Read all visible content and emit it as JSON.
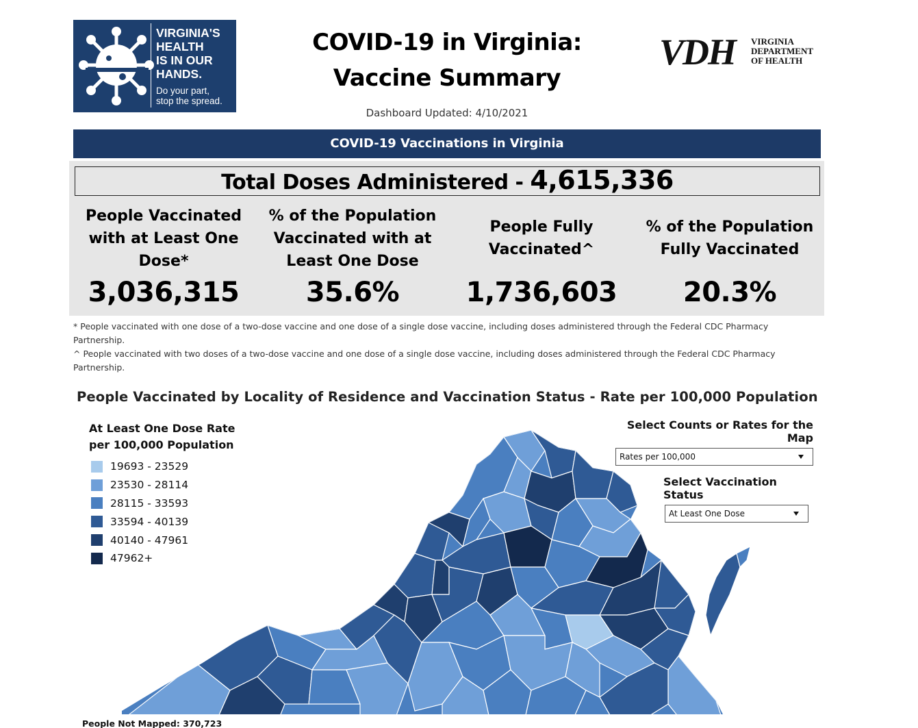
{
  "header": {
    "logo_left": {
      "slogan_lines": [
        "VIRGINIA'S",
        "HEALTH",
        "IS IN OUR",
        "HANDS."
      ],
      "sub_lines": [
        "Do your part,",
        "stop the spread."
      ]
    },
    "title_line1": "COVID-19 in Virginia:",
    "title_line2": "Vaccine Summary",
    "updated": "Dashboard Updated: 4/10/2021",
    "logo_right": {
      "mark": "VDH",
      "text_lines": [
        "VIRGINIA",
        "DEPARTMENT",
        "OF HEALTH"
      ]
    }
  },
  "banner": "COVID-19 Vaccinations in Virginia",
  "summary": {
    "total_label": "Total Doses Administered - ",
    "total_value": "4,615,336",
    "stats": [
      {
        "label": "People Vaccinated with at Least One Dose*",
        "value": "3,036,315"
      },
      {
        "label": "% of the Population Vaccinated with at Least One Dose",
        "value": "35.6%"
      },
      {
        "label": "People Fully Vaccinated^",
        "value": "1,736,603"
      },
      {
        "label": "% of the Population Fully Vaccinated",
        "value": "20.3%"
      }
    ]
  },
  "notes": [
    "* People vaccinated with one dose of a two-dose vaccine and one dose of a single dose vaccine, including doses administered through the Federal CDC Pharmacy Partnership.",
    "^ People vaccinated with two doses of a two-dose vaccine and one dose of a single dose vaccine, including doses administered through the Federal CDC Pharmacy Partnership."
  ],
  "map_section": {
    "title": "People Vaccinated by Locality of Residence and Vaccination Status - Rate per 100,000 Population",
    "legend": {
      "title": "At Least One Dose Rate per 100,000 Population",
      "items": [
        {
          "label": "19693 - 23529",
          "color": "#a8cbec"
        },
        {
          "label": "23530 - 28114",
          "color": "#6f9fd8"
        },
        {
          "label": "28115 - 33593",
          "color": "#4a7fc0"
        },
        {
          "label": "33594 - 40139",
          "color": "#2f5a95"
        },
        {
          "label": "40140 - 47961",
          "color": "#1f3f6e"
        },
        {
          "label": "47962+",
          "color": "#13294d"
        }
      ]
    },
    "counts_control": {
      "label": "Select Counts or Rates for the Map",
      "value": "Rates per 100,000"
    },
    "status_control": {
      "label": "Select Vaccination Status",
      "value": "At Least One Dose"
    },
    "not_mapped": "People Not Mapped: 370,723"
  }
}
